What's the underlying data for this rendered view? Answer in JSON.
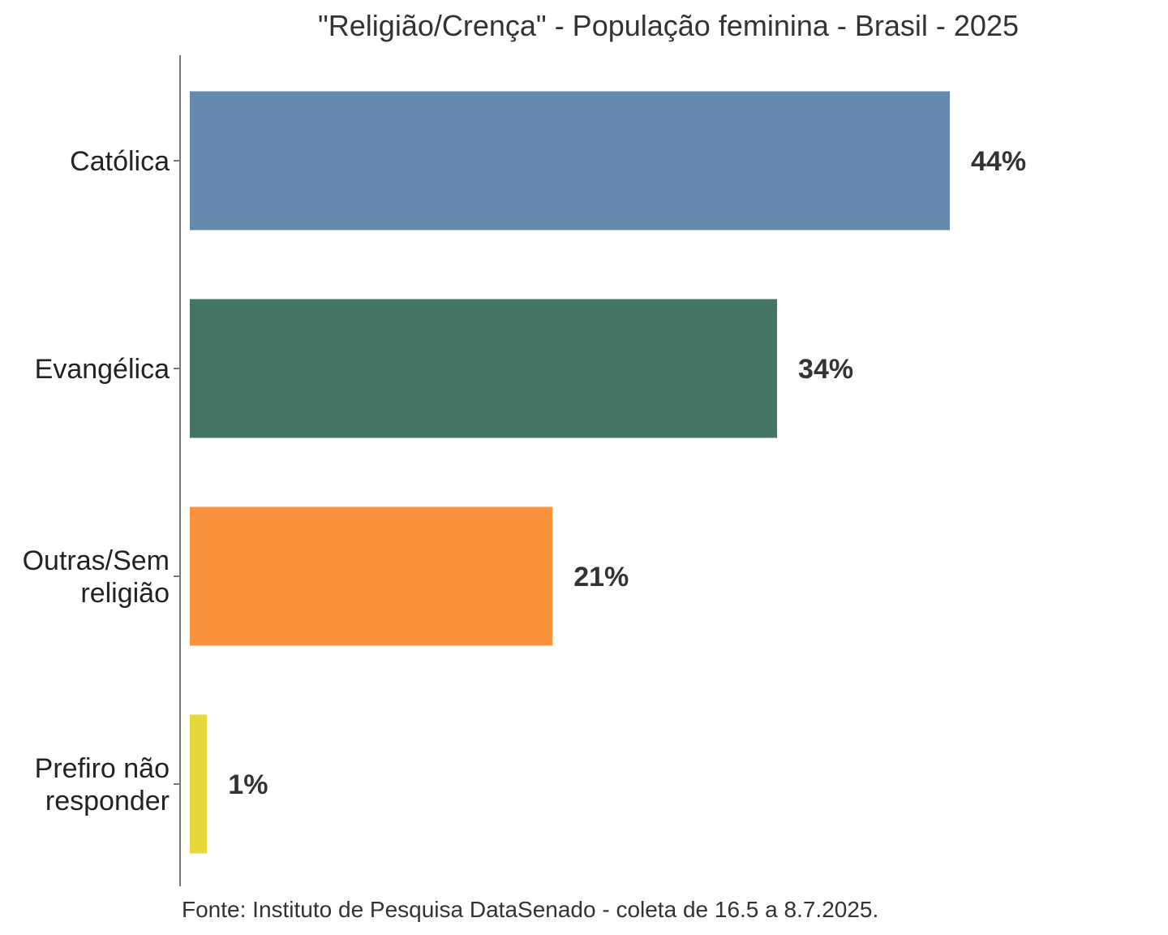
{
  "chart_data": {
    "type": "bar",
    "orientation": "horizontal",
    "title": "\"Religião/Crença\" - População feminina - Brasil - 2025",
    "categories": [
      [
        "Católica"
      ],
      [
        "Evangélica"
      ],
      [
        "Outras/Sem",
        "religião"
      ],
      [
        "Prefiro não",
        "responder"
      ]
    ],
    "values": [
      44,
      34,
      21,
      1
    ],
    "value_labels": [
      "44%",
      "34%",
      "21%",
      "1%"
    ],
    "colors": [
      "#6588ae",
      "#457664",
      "#fa913d",
      "#e6d83b"
    ],
    "xlim": [
      0,
      50
    ],
    "xlabel": "",
    "ylabel": "",
    "grid": false,
    "caption": "Fonte: Instituto de Pesquisa DataSenado - coleta de 16.5 a 8.7.2025."
  }
}
